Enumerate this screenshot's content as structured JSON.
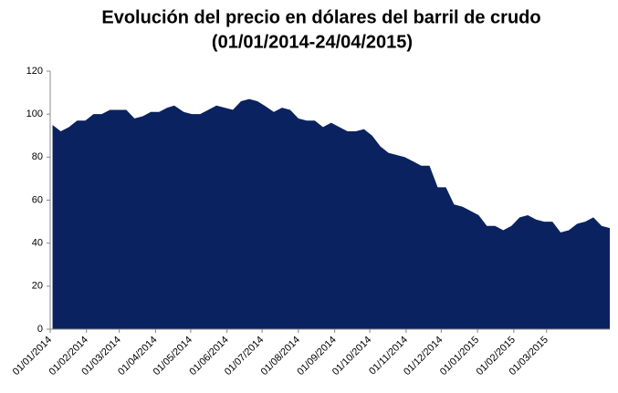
{
  "chart_data": {
    "type": "area",
    "title": [
      "Evolución del precio en dólares del barril de crudo",
      "(01/01/2014-24/04/2015)"
    ],
    "color": "#0b2260",
    "x": [
      "2014-01-03",
      "2014-01-10",
      "2014-01-17",
      "2014-01-24",
      "2014-01-31",
      "2014-02-07",
      "2014-02-14",
      "2014-02-21",
      "2014-02-28",
      "2014-03-07",
      "2014-03-14",
      "2014-03-21",
      "2014-03-28",
      "2014-04-04",
      "2014-04-11",
      "2014-04-17",
      "2014-04-25",
      "2014-05-02",
      "2014-05-09",
      "2014-05-16",
      "2014-05-23",
      "2014-05-30",
      "2014-06-06",
      "2014-06-13",
      "2014-06-20",
      "2014-06-27",
      "2014-07-03",
      "2014-07-11",
      "2014-07-18",
      "2014-07-25",
      "2014-08-01",
      "2014-08-08",
      "2014-08-15",
      "2014-08-22",
      "2014-08-29",
      "2014-09-05",
      "2014-09-12",
      "2014-09-19",
      "2014-09-26",
      "2014-10-03",
      "2014-10-10",
      "2014-10-17",
      "2014-10-24",
      "2014-10-31",
      "2014-11-07",
      "2014-11-14",
      "2014-11-21",
      "2014-11-28",
      "2014-12-05",
      "2014-12-12",
      "2014-12-19",
      "2014-12-26",
      "2015-01-02",
      "2015-01-09",
      "2015-01-16",
      "2015-01-23",
      "2015-01-30",
      "2015-02-06",
      "2015-02-13",
      "2015-02-20",
      "2015-02-27",
      "2015-03-06",
      "2015-03-13",
      "2015-03-20",
      "2015-03-27",
      "2015-04-03",
      "2015-04-10",
      "2015-04-17",
      "2015-04-24"
    ],
    "values": [
      95,
      92,
      94,
      97,
      97,
      100,
      100,
      102,
      102,
      102,
      98,
      99,
      101,
      101,
      103,
      104,
      101,
      100,
      100,
      102,
      104,
      103,
      102,
      106,
      107,
      106,
      104,
      101,
      103,
      102,
      98,
      97,
      97,
      94,
      96,
      94,
      92,
      92,
      93,
      90,
      85,
      82,
      81,
      80,
      78,
      76,
      76,
      66,
      66,
      58,
      57,
      55,
      53,
      48,
      48,
      46,
      48,
      52,
      53,
      51,
      50,
      50,
      45,
      46,
      49,
      50,
      52,
      48,
      47
    ],
    "xlim": [
      "2014-01-01",
      "2015-04-24"
    ],
    "xticks": [
      {
        "value": "2014-01-01",
        "label": "01/01/2014"
      },
      {
        "value": "2014-02-01",
        "label": "01/02/2014"
      },
      {
        "value": "2014-03-01",
        "label": "01/03/2014"
      },
      {
        "value": "2014-04-01",
        "label": "01/04/2014"
      },
      {
        "value": "2014-05-01",
        "label": "01/05/2014"
      },
      {
        "value": "2014-06-01",
        "label": "01/06/2014"
      },
      {
        "value": "2014-07-01",
        "label": "01/07/2014"
      },
      {
        "value": "2014-08-01",
        "label": "01/08/2014"
      },
      {
        "value": "2014-09-01",
        "label": "01/09/2014"
      },
      {
        "value": "2014-10-01",
        "label": "01/10/2014"
      },
      {
        "value": "2014-11-01",
        "label": "01/11/2014"
      },
      {
        "value": "2014-12-01",
        "label": "01/12/2014"
      },
      {
        "value": "2015-01-01",
        "label": "01/01/2015"
      },
      {
        "value": "2015-02-01",
        "label": "01/02/2015"
      },
      {
        "value": "2015-03-01",
        "label": "01/03/2015"
      }
    ],
    "ylim": [
      0,
      120
    ],
    "yticks": [
      0,
      20,
      40,
      60,
      80,
      100,
      120
    ],
    "grid": false
  }
}
